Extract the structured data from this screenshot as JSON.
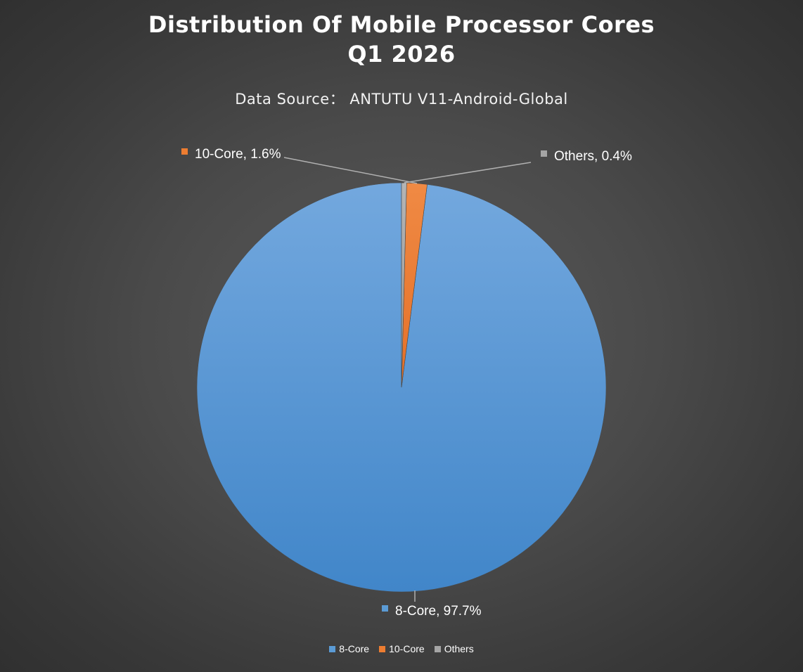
{
  "chart_data": {
    "type": "pie",
    "title_line1": "Distribution Of Mobile Processor Cores",
    "title_line2": "Q1 2026",
    "subtitle": "Data Source： ANTUTU V11-Android-Global",
    "slices": [
      {
        "name": "8-Core",
        "value": 97.7,
        "label": "8-Core, 97.7%",
        "color": "#5b9bd5"
      },
      {
        "name": "10-Core",
        "value": 1.6,
        "label": "10-Core, 1.6%",
        "color": "#ed7d31"
      },
      {
        "name": "Others",
        "value": 0.4,
        "label": "Others, 0.4%",
        "color": "#a5a5a5"
      }
    ],
    "legend": [
      "8-Core",
      "10-Core",
      "Others"
    ],
    "legend_position": "bottom",
    "start_angle": "12 o'clock",
    "direction": "counter-clockwise"
  }
}
